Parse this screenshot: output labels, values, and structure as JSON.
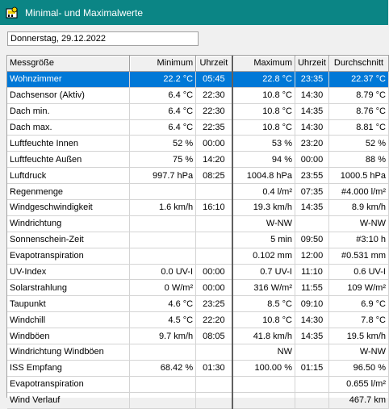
{
  "window": {
    "title": "Minimal- und Maximalwerte"
  },
  "date_field": {
    "value": "Donnerstag, 29.12.2022"
  },
  "table": {
    "headers": [
      "Messgröße",
      "Minimum",
      "Uhrzeit",
      "Maximum",
      "Uhrzeit",
      "Durchschnitt"
    ],
    "rows": [
      [
        "Wohnzimmer",
        "22.2 °C",
        "05:45",
        "22.8 °C",
        "23:35",
        "22.37 °C"
      ],
      [
        "Dachsensor (Aktiv)",
        "6.4 °C",
        "22:30",
        "10.8 °C",
        "14:30",
        "8.79 °C"
      ],
      [
        "Dach min.",
        "6.4 °C",
        "22:30",
        "10.8 °C",
        "14:35",
        "8.76 °C"
      ],
      [
        "Dach max.",
        "6.4 °C",
        "22:35",
        "10.8 °C",
        "14:30",
        "8.81 °C"
      ],
      [
        "Luftfeuchte Innen",
        "52 %",
        "00:00",
        "53 %",
        "23:20",
        "52 %"
      ],
      [
        "Luftfeuchte Außen",
        "75 %",
        "14:20",
        "94 %",
        "00:00",
        "88 %"
      ],
      [
        "Luftdruck",
        "997.7 hPa",
        "08:25",
        "1004.8 hPa",
        "23:55",
        "1000.5 hPa"
      ],
      [
        "Regenmenge",
        "",
        "",
        "0.4 l/m²",
        "07:35",
        "#4.000 l/m²"
      ],
      [
        "Windgeschwindigkeit",
        "1.6 km/h",
        "16:10",
        "19.3 km/h",
        "14:35",
        "8.9 km/h"
      ],
      [
        "Windrichtung",
        "",
        "",
        "W-NW",
        "",
        "W-NW"
      ],
      [
        "Sonnenschein-Zeit",
        "",
        "",
        "5 min",
        "09:50",
        "#3:10 h"
      ],
      [
        "Evapotranspiration",
        "",
        "",
        "0.102 mm",
        "12:00",
        "#0.531 mm"
      ],
      [
        "UV-Index",
        "0.0 UV-I",
        "00:00",
        "0.7 UV-I",
        "11:10",
        "0.6 UV-I"
      ],
      [
        "Solarstrahlung",
        "0 W/m²",
        "00:00",
        "316 W/m²",
        "11:55",
        "109 W/m²"
      ],
      [
        "Taupunkt",
        "4.6 °C",
        "23:25",
        "8.5 °C",
        "09:10",
        "6.9 °C"
      ],
      [
        "Windchill",
        "4.5 °C",
        "22:20",
        "10.8 °C",
        "14:30",
        "7.8 °C"
      ],
      [
        "Windböen",
        "9.7 km/h",
        "08:05",
        "41.8 km/h",
        "14:35",
        "19.5 km/h"
      ],
      [
        "Windrichtung Windböen",
        "",
        "",
        "NW",
        "",
        "W-NW"
      ],
      [
        "ISS Empfang",
        "68.42 %",
        "01:30",
        "100.00 %",
        "01:15",
        "96.50 %"
      ],
      [
        "Evapotranspiration",
        "",
        "",
        "",
        "",
        "0.655 l/m²"
      ],
      [
        "Wind Verlauf",
        "",
        "",
        "",
        "",
        "467.7 km"
      ]
    ],
    "selected_row": 0
  }
}
